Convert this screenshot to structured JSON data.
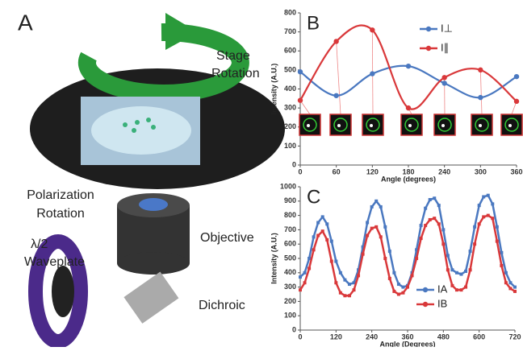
{
  "diagram": {
    "panel_label": "A",
    "stage_rotation": [
      "Stage",
      "Rotation"
    ],
    "polarization_rotation": [
      "Polarization",
      "Rotation"
    ],
    "waveplate": [
      "λ/2",
      "Waveplate"
    ],
    "objective": "Objective",
    "dichroic": "Dichroic"
  },
  "chart_data": [
    {
      "type": "line",
      "panel_label": "B",
      "xlabel": "Angle (degrees)",
      "ylabel": "Intensity (A.U.)",
      "x": [
        0,
        60,
        120,
        180,
        240,
        300,
        360
      ],
      "series": [
        {
          "name": "I⊥",
          "color": "#4a78c0",
          "values": [
            490,
            365,
            480,
            520,
            430,
            355,
            465
          ]
        },
        {
          "name": "I∥",
          "color": "#d9383a",
          "values": [
            340,
            650,
            710,
            300,
            460,
            500,
            335
          ]
        }
      ],
      "xlim": [
        0,
        360
      ],
      "xticks": [
        0,
        60,
        120,
        180,
        240,
        300,
        360
      ],
      "ylim": [
        0,
        800
      ],
      "yticks": [
        0,
        100,
        200,
        300,
        400,
        500,
        600,
        700,
        800
      ],
      "legend": "upper right"
    },
    {
      "type": "line",
      "panel_label": "C",
      "xlabel": "Angle (Degrees)",
      "ylabel": "Intensity (A.U.)",
      "x": [
        0,
        15,
        30,
        45,
        60,
        75,
        90,
        105,
        120,
        135,
        150,
        165,
        180,
        195,
        210,
        225,
        240,
        255,
        270,
        285,
        300,
        315,
        330,
        345,
        360,
        375,
        390,
        405,
        420,
        435,
        450,
        465,
        480,
        495,
        510,
        525,
        540,
        555,
        570,
        585,
        600,
        615,
        630,
        645,
        660,
        675,
        690,
        705,
        720
      ],
      "series": [
        {
          "name": "IA",
          "color": "#4a78c0",
          "values": [
            370,
            400,
            500,
            650,
            750,
            790,
            740,
            620,
            480,
            400,
            350,
            320,
            330,
            420,
            580,
            750,
            860,
            900,
            860,
            720,
            550,
            400,
            320,
            300,
            310,
            400,
            560,
            730,
            850,
            910,
            920,
            870,
            700,
            520,
            420,
            400,
            390,
            410,
            550,
            720,
            870,
            930,
            940,
            880,
            720,
            540,
            400,
            330,
            300
          ]
        },
        {
          "name": "IB",
          "color": "#d9383a",
          "values": [
            280,
            330,
            430,
            560,
            660,
            690,
            630,
            480,
            330,
            260,
            240,
            240,
            280,
            380,
            530,
            660,
            710,
            720,
            650,
            500,
            360,
            270,
            250,
            260,
            300,
            380,
            500,
            640,
            730,
            770,
            780,
            740,
            600,
            420,
            310,
            280,
            280,
            300,
            420,
            600,
            740,
            790,
            800,
            780,
            620,
            450,
            330,
            290,
            270
          ]
        }
      ],
      "xlim": [
        0,
        720
      ],
      "xticks": [
        0,
        120,
        240,
        360,
        480,
        600,
        720
      ],
      "ylim": [
        0,
        1000
      ],
      "yticks": [
        0,
        100,
        200,
        300,
        400,
        500,
        600,
        700,
        800,
        900,
        1000
      ],
      "legend": "lower right"
    }
  ]
}
